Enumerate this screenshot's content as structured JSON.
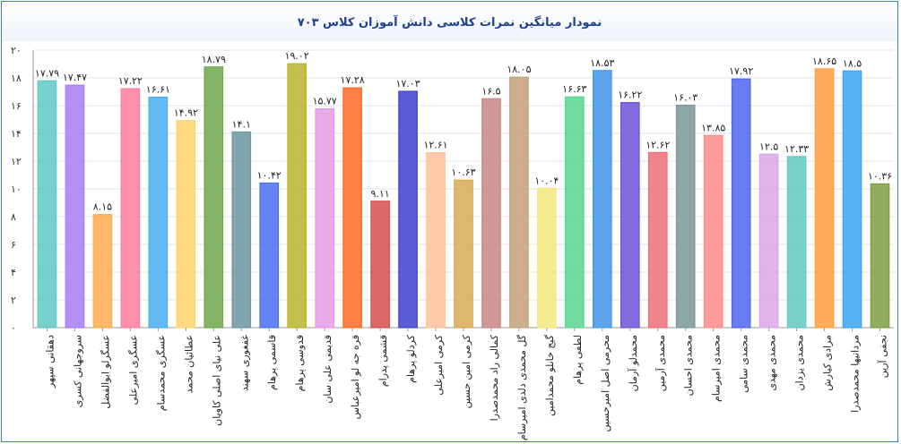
{
  "chart_data": {
    "type": "bar",
    "title": "نمودار میانگین نمرات کلاسی دانش آموزان کلاس ۷۰۳",
    "ylim": [
      0,
      20
    ],
    "ytick_labels": [
      "۰",
      "۲",
      "۴",
      "۶",
      "۸",
      "۱۰",
      "۱۲",
      "۱۴",
      "۱۶",
      "۱۸",
      "۲۰"
    ],
    "grid": true,
    "legend": "none",
    "categories": [
      "دهقانی سپهر",
      "سروجهانی کسری",
      "عسگرلو ابوالفضل",
      "عسگری امیرعلی",
      "عسگری محمدسام",
      "عطائیان محمد",
      "علی نیای اصلی کاویان",
      "غفغوری سهند",
      "قاسمی پرهام",
      "قدوسی پرهام",
      "قدیمی علی سان",
      "قره جه لو امیرعباس",
      "قشمی پدرام",
      "کردلو پرهام",
      "کرمی امیرعلی",
      "کرمی امین حسین",
      "کمالی راد محمدصدرا",
      "گل محمدی دلدی امیرسام",
      "گیج خانلو محمدامین",
      "لطفی پرهام",
      "محرمی اصل امیرحسین",
      "محمدلو آرمان",
      "محمدی آرمین",
      "محمدی احسان",
      "محمدی امیرسام",
      "محمدی سامی",
      "محمدی مهدی",
      "محمدی یزدان",
      "مرادی کیارش",
      "مردانیها محمدصدرا",
      "نجفی آرین"
    ],
    "values": [
      17.79,
      17.47,
      8.15,
      17.22,
      16.61,
      14.92,
      18.79,
      14.1,
      10.42,
      19.02,
      15.77,
      17.28,
      9.11,
      17.03,
      12.61,
      10.63,
      16.5,
      18.05,
      10.04,
      16.63,
      18.53,
      16.22,
      12.62,
      16.03,
      13.85,
      17.92,
      12.5,
      12.33,
      18.65,
      18.5,
      10.36
    ],
    "value_labels": [
      "۱۷.۷۹",
      "۱۷.۴۷",
      "۸.۱۵",
      "۱۷.۲۲",
      "۱۶.۶۱",
      "۱۴.۹۲",
      "۱۸.۷۹",
      "۱۴.۱",
      "۱۰.۴۲",
      "۱۹.۰۲",
      "۱۵.۷۷",
      "۱۷.۲۸",
      "۹.۱۱",
      "۱۷.۰۳",
      "۱۲.۶۱",
      "۱۰.۶۳",
      "۱۶.۵",
      "۱۸.۰۵",
      "۱۰.۰۴",
      "۱۶.۶۳",
      "۱۸.۵۳",
      "۱۶.۲۲",
      "۱۲.۶۲",
      "۱۶.۰۳",
      "۱۳.۸۵",
      "۱۷.۹۲",
      "۱۲.۵",
      "۱۲.۳۳",
      "۱۸.۶۵",
      "۱۸.۵",
      "۱۰.۳۶"
    ],
    "colors": [
      "#5fc8c4",
      "#a87cf2",
      "#ffab4d",
      "#ff7c9c",
      "#48aef0",
      "#ffd36a",
      "#6fa84c",
      "#6b97a0",
      "#4a6ef2",
      "#b7b52a",
      "#e59ae6",
      "#ff6a26",
      "#d84c4c",
      "#3d3fcf",
      "#ffc09a",
      "#d6aa55",
      "#c78787",
      "#c3a07a",
      "#f5e67a",
      "#57d68e",
      "#3f95e8",
      "#6e52d6",
      "#ec6f76",
      "#7b969a",
      "#ff8a8a",
      "#4f65ef",
      "#dba6e6",
      "#62c7c3",
      "#ff9c3c",
      "#3ba4ef",
      "#7c9e43"
    ]
  }
}
